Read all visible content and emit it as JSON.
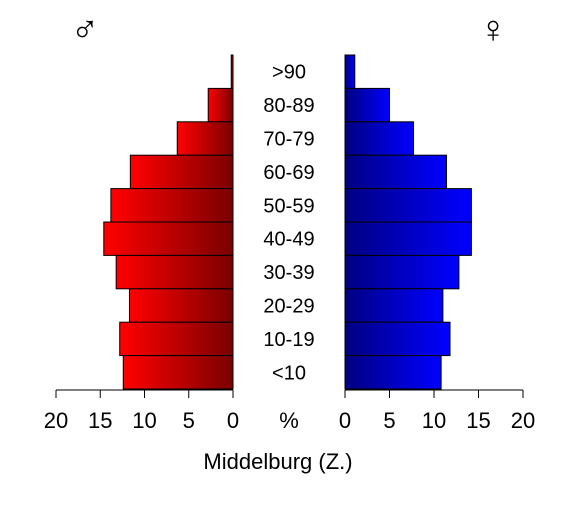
{
  "chart_data": {
    "type": "bar",
    "title": "Middelburg (Z.)",
    "male_symbol": "♂",
    "female_symbol": "♀",
    "unit_label": "%",
    "categories": [
      ">90",
      "80-89",
      "70-79",
      "60-69",
      "50-59",
      "40-49",
      "30-39",
      "20-29",
      "10-19",
      "<10"
    ],
    "series": [
      {
        "values": [
          0.2,
          2.8,
          6.3,
          11.6,
          13.8,
          14.6,
          13.2,
          11.7,
          12.8,
          12.4
        ]
      },
      {
        "values": [
          1.1,
          5.0,
          7.7,
          11.4,
          14.2,
          14.2,
          12.8,
          11.0,
          11.8,
          10.8
        ]
      }
    ],
    "xlim": [
      0,
      20
    ],
    "x_ticks": [
      "20",
      "15",
      "10",
      "5",
      "0",
      "0",
      "5",
      "10",
      "15",
      "20"
    ],
    "colors": {
      "male": "#ff0000",
      "male_dark": "#7a0000",
      "female": "#0000ff",
      "female_dark": "#000080"
    }
  }
}
